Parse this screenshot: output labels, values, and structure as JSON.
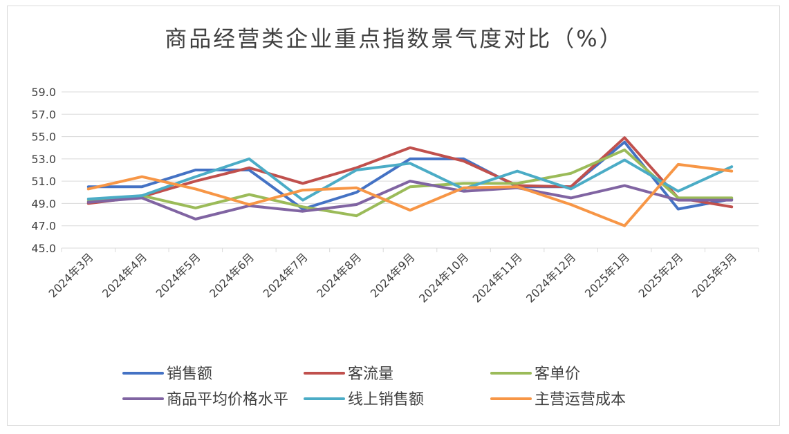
{
  "chart_data": {
    "type": "line",
    "title": "商品经营类企业重点指数景气度对比（%）",
    "categories": [
      "2024年3月",
      "2024年4月",
      "2024年5月",
      "2024年6月",
      "2024年7月",
      "2024年8月",
      "2024年9月",
      "2024年10月",
      "2024年11月",
      "2024年12月",
      "2025年1月",
      "2025年2月",
      "2025年3月"
    ],
    "ylim": [
      45.0,
      59.0
    ],
    "yticks": [
      "45.0",
      "47.0",
      "49.0",
      "51.0",
      "53.0",
      "55.0",
      "57.0",
      "59.0"
    ],
    "grid": true,
    "legend_position": "bottom",
    "series": [
      {
        "name": "销售额",
        "color": "#4472c4",
        "values": [
          50.5,
          50.5,
          52.0,
          52.0,
          48.5,
          50.0,
          53.0,
          53.0,
          50.5,
          50.5,
          54.5,
          48.5,
          49.4
        ]
      },
      {
        "name": "客流量",
        "color": "#c0504d",
        "values": [
          49.0,
          49.6,
          51.0,
          52.2,
          50.8,
          52.2,
          54.0,
          52.8,
          50.6,
          50.5,
          54.9,
          49.5,
          48.7
        ]
      },
      {
        "name": "客单价",
        "color": "#9bbb59",
        "values": [
          49.2,
          49.7,
          48.6,
          49.8,
          48.7,
          47.9,
          50.5,
          50.8,
          50.8,
          51.7,
          53.8,
          49.5,
          49.5
        ]
      },
      {
        "name": "商品平均价格水平",
        "color": "#8064a2",
        "values": [
          49.1,
          49.5,
          47.6,
          48.8,
          48.3,
          48.9,
          51.0,
          50.1,
          50.4,
          49.5,
          50.6,
          49.3,
          49.3
        ]
      },
      {
        "name": "线上销售额",
        "color": "#4bacc6",
        "values": [
          49.4,
          49.7,
          51.4,
          53.0,
          49.3,
          52.0,
          52.6,
          50.3,
          51.9,
          50.3,
          52.9,
          50.1,
          52.3
        ]
      },
      {
        "name": "主营运营成本",
        "color": "#f79646",
        "values": [
          50.3,
          51.4,
          50.3,
          48.9,
          50.2,
          50.4,
          48.4,
          50.4,
          50.5,
          48.9,
          47.0,
          52.5,
          51.9
        ]
      }
    ]
  }
}
